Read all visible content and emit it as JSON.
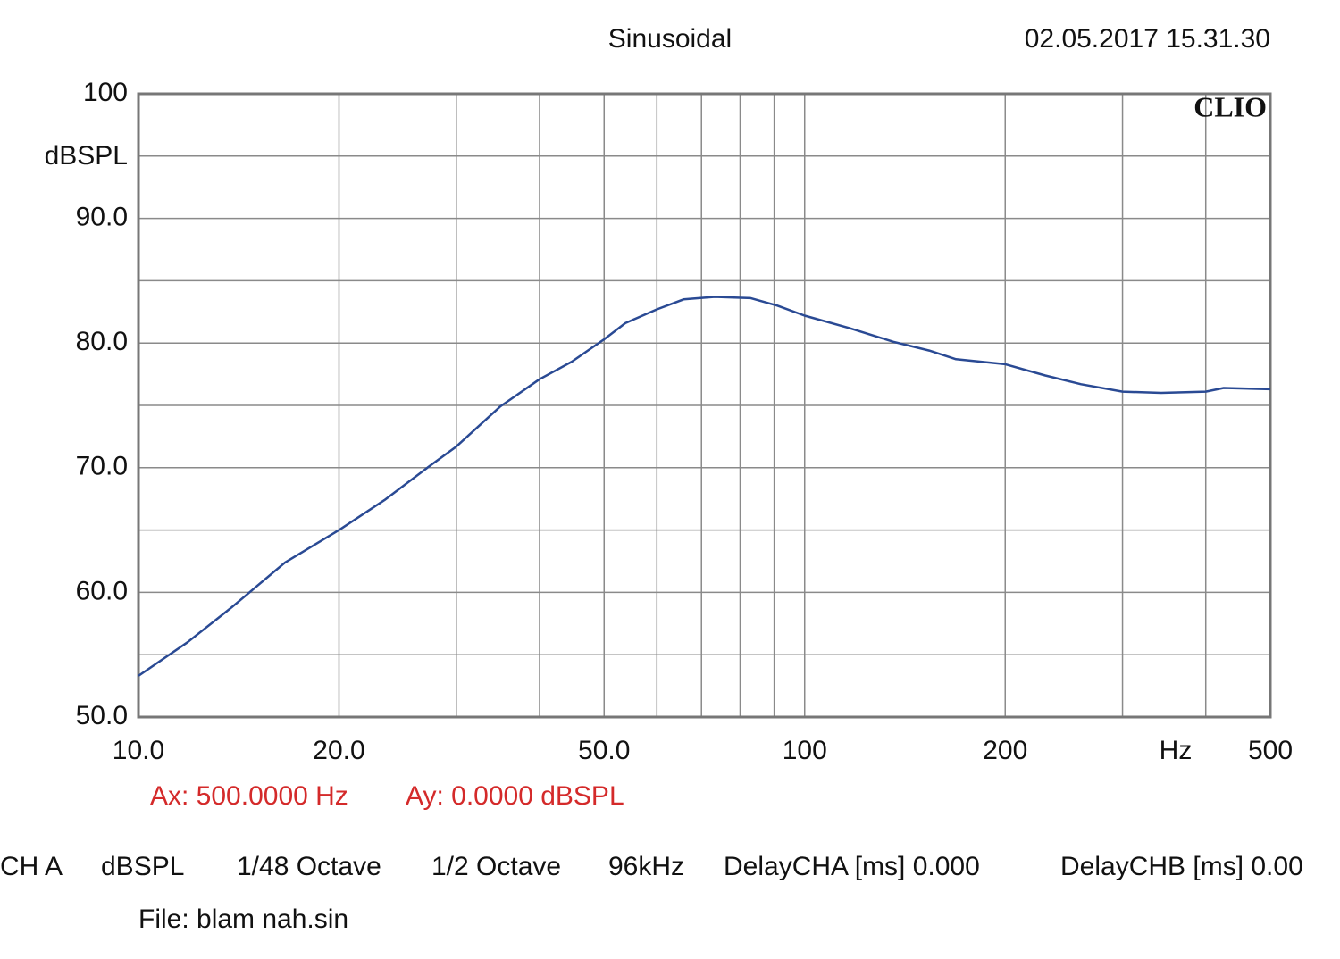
{
  "chart_data": {
    "type": "line",
    "title": "Sinusoidal",
    "timestamp": "02.05.2017 15.31.30",
    "brand": "CLIO",
    "y_label": "dBSPL",
    "x_unit": "Hz",
    "log_x": true,
    "grid": true,
    "color": "#2a4a94",
    "x": [
      10,
      11.85,
      13.8,
      16.6,
      20,
      23.4,
      27.3,
      30,
      34.9,
      40,
      44.7,
      50,
      53.8,
      60,
      65.8,
      73.3,
      83,
      91,
      100,
      116.7,
      135.9,
      153.8,
      168.7,
      200,
      229.7,
      260,
      300,
      342.8,
      400,
      425.6,
      500
    ],
    "values": [
      53.3,
      56.0,
      58.8,
      62.4,
      65.0,
      67.4,
      70.1,
      71.7,
      74.9,
      77.1,
      78.5,
      80.3,
      81.6,
      82.7,
      83.5,
      83.7,
      83.6,
      83.0,
      82.2,
      81.2,
      80.1,
      79.4,
      78.7,
      78.3,
      77.4,
      76.7,
      76.1,
      76.0,
      76.1,
      76.4,
      76.3
    ],
    "xlim": [
      10,
      500
    ],
    "ylim": [
      50,
      100
    ],
    "xticks": [
      {
        "value": 10,
        "label": "10.0"
      },
      {
        "value": 20,
        "label": "20.0"
      },
      {
        "value": 50,
        "label": "50.0"
      },
      100,
      200,
      500
    ],
    "xminor": [
      30,
      40,
      60,
      70,
      80,
      90,
      300,
      400
    ],
    "yticks": [
      {
        "value": 50,
        "label": "50.0"
      },
      {
        "value": 60,
        "label": "60.0"
      },
      {
        "value": 70,
        "label": "70.0"
      },
      {
        "value": 80,
        "label": "80.0"
      },
      {
        "value": 90,
        "label": "90.0"
      },
      100
    ],
    "yminor": [
      55,
      65,
      75,
      85,
      95
    ],
    "cursor": [
      "Ax: 500.0000 Hz",
      "Ay: 0.0000 dBSPL"
    ],
    "footer": [
      "CH A",
      "dBSPL",
      "1/48 Octave",
      "1/2 Octave",
      "96kHz",
      "DelayCHA [ms] 0.000",
      "DelayCHB [ms] 0.00"
    ],
    "file": "File: blam nah.sin"
  }
}
